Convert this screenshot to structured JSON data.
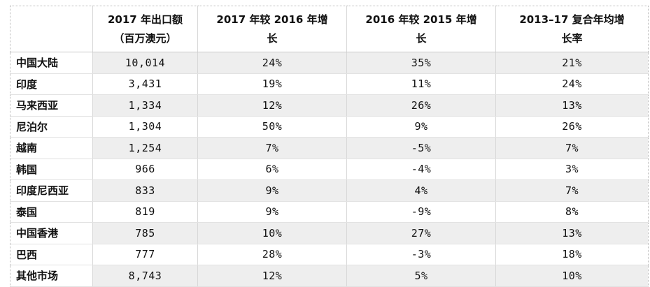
{
  "table": {
    "headers": [
      {
        "lines": [
          "",
          ""
        ]
      },
      {
        "lines": [
          "2017 年出口额",
          "（百万澳元）"
        ]
      },
      {
        "lines": [
          "2017 年较 2016 年增",
          "长"
        ]
      },
      {
        "lines": [
          "2016 年较 2015 年增",
          "长"
        ]
      },
      {
        "lines": [
          "2013–17 复合年均增",
          "长率"
        ]
      }
    ],
    "rows": [
      {
        "region": "中国大陆",
        "exports": "10,014",
        "g2017": "24%",
        "g2016": "35%",
        "cagr": "21%"
      },
      {
        "region": "印度",
        "exports": "3,431",
        "g2017": "19%",
        "g2016": "11%",
        "cagr": "24%"
      },
      {
        "region": "马来西亚",
        "exports": "1,334",
        "g2017": "12%",
        "g2016": "26%",
        "cagr": "13%"
      },
      {
        "region": "尼泊尔",
        "exports": "1,304",
        "g2017": "50%",
        "g2016": "9%",
        "cagr": "26%"
      },
      {
        "region": "越南",
        "exports": "1,254",
        "g2017": "7%",
        "g2016": "-5%",
        "cagr": "7%"
      },
      {
        "region": "韩国",
        "exports": "966",
        "g2017": "6%",
        "g2016": "-4%",
        "cagr": "3%"
      },
      {
        "region": "印度尼西亚",
        "exports": "833",
        "g2017": "9%",
        "g2016": "4%",
        "cagr": "7%"
      },
      {
        "region": "泰国",
        "exports": "819",
        "g2017": "9%",
        "g2016": "-9%",
        "cagr": "8%"
      },
      {
        "region": "中国香港",
        "exports": "785",
        "g2017": "10%",
        "g2016": "27%",
        "cagr": "13%"
      },
      {
        "region": "巴西",
        "exports": "777",
        "g2017": "28%",
        "g2016": "-3%",
        "cagr": "18%"
      },
      {
        "region": "其他市场",
        "exports": "8,743",
        "g2017": "12%",
        "g2016": "5%",
        "cagr": "10%"
      }
    ]
  }
}
